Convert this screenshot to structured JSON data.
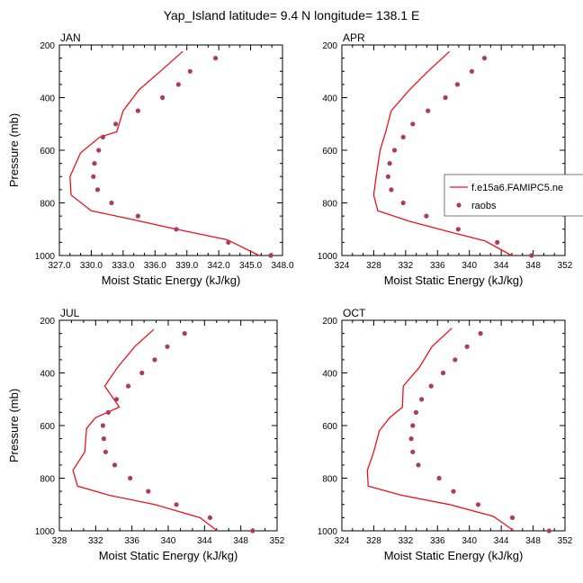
{
  "figure": {
    "title": "Yap_Island  latitude= 9.4 N longitude= 138.1 E"
  },
  "legend": {
    "model_label": "f.e15a6.FAMIPC5.ne",
    "obs_label": "raobs",
    "line_color": "#e8141a",
    "marker_color": "#b03a5e"
  },
  "chart_data": [
    {
      "type": "line",
      "panel": "JAN",
      "xlabel": "Moist Static Energy (kJ/kg)",
      "ylabel": "Pressure (mb)",
      "xlim": [
        327,
        348
      ],
      "xticks": [
        327,
        330,
        333,
        336,
        339,
        342,
        345,
        348
      ],
      "xtick_labels": [
        "327.0",
        "330.0",
        "333.0",
        "336.0",
        "339.0",
        "342.0",
        "345.0",
        "348.0"
      ],
      "ylim": [
        200,
        1000
      ],
      "yticks": [
        200,
        400,
        600,
        800,
        1000
      ],
      "y_inverted": true,
      "series": [
        {
          "name": "f.e15a6.FAMIPC5.ne",
          "style": "line",
          "points": [
            [
              338.6,
              225
            ],
            [
              336.5,
              300
            ],
            [
              334.5,
              370
            ],
            [
              333.0,
              450
            ],
            [
              332.4,
              530
            ],
            [
              330.8,
              550
            ],
            [
              329.0,
              610
            ],
            [
              328.0,
              700
            ],
            [
              328.1,
              770
            ],
            [
              330.0,
              830
            ],
            [
              333.5,
              860
            ],
            [
              338.0,
              900
            ],
            [
              342.8,
              940
            ],
            [
              345.8,
              1000
            ]
          ]
        },
        {
          "name": "raobs",
          "style": "scatter",
          "points": [
            [
              341.7,
              250
            ],
            [
              339.3,
              300
            ],
            [
              338.2,
              350
            ],
            [
              336.7,
              400
            ],
            [
              334.4,
              450
            ],
            [
              332.3,
              500
            ],
            [
              331.1,
              550
            ],
            [
              330.7,
              600
            ],
            [
              330.3,
              650
            ],
            [
              330.2,
              700
            ],
            [
              330.6,
              750
            ],
            [
              331.9,
              800
            ],
            [
              334.4,
              850
            ],
            [
              338.0,
              900
            ],
            [
              342.9,
              950
            ],
            [
              346.9,
              1000
            ]
          ]
        }
      ]
    },
    {
      "type": "line",
      "panel": "APR",
      "xlabel": "Moist Static Energy (kJ/kg)",
      "ylabel": "",
      "xlim": [
        324,
        352
      ],
      "xticks": [
        324,
        328,
        332,
        336,
        340,
        344,
        348,
        352
      ],
      "xtick_labels": [
        "324",
        "328",
        "332",
        "336",
        "340",
        "344",
        "348",
        "352"
      ],
      "ylim": [
        200,
        1000
      ],
      "yticks": [
        200,
        400,
        600,
        800,
        1000
      ],
      "y_inverted": true,
      "series": [
        {
          "name": "f.e15a6.FAMIPC5.ne",
          "style": "line",
          "points": [
            [
              337.5,
              225
            ],
            [
              334.8,
              300
            ],
            [
              332.5,
              370
            ],
            [
              330.2,
              450
            ],
            [
              329.5,
              530
            ],
            [
              328.8,
              600
            ],
            [
              328.3,
              700
            ],
            [
              328.0,
              770
            ],
            [
              328.5,
              830
            ],
            [
              332.5,
              870
            ],
            [
              337.5,
              910
            ],
            [
              342.0,
              945
            ],
            [
              345.3,
              1000
            ]
          ]
        },
        {
          "name": "raobs",
          "style": "scatter",
          "points": [
            [
              341.9,
              250
            ],
            [
              340.3,
              300
            ],
            [
              338.5,
              350
            ],
            [
              337.0,
              400
            ],
            [
              334.8,
              450
            ],
            [
              332.9,
              500
            ],
            [
              331.7,
              550
            ],
            [
              330.6,
              600
            ],
            [
              330.0,
              650
            ],
            [
              329.8,
              700
            ],
            [
              330.2,
              750
            ],
            [
              331.7,
              800
            ],
            [
              334.6,
              850
            ],
            [
              338.6,
              900
            ],
            [
              343.5,
              950
            ],
            [
              347.8,
              1000
            ]
          ]
        }
      ]
    },
    {
      "type": "line",
      "panel": "JUL",
      "xlabel": "Moist Static Energy (kJ/kg)",
      "ylabel": "Pressure (mb)",
      "xlim": [
        328,
        352
      ],
      "xticks": [
        328,
        332,
        336,
        340,
        344,
        348,
        352
      ],
      "xtick_labels": [
        "328",
        "332",
        "336",
        "340",
        "344",
        "348",
        "352"
      ],
      "ylim": [
        200,
        1000
      ],
      "yticks": [
        200,
        400,
        600,
        800,
        1000
      ],
      "y_inverted": true,
      "series": [
        {
          "name": "f.e15a6.FAMIPC5.ne",
          "style": "line",
          "points": [
            [
              338.4,
              235
            ],
            [
              336.3,
              300
            ],
            [
              334.4,
              380
            ],
            [
              333.0,
              450
            ],
            [
              334.6,
              530
            ],
            [
              332.0,
              570
            ],
            [
              331.0,
              610
            ],
            [
              330.8,
              700
            ],
            [
              329.5,
              770
            ],
            [
              330.0,
              830
            ],
            [
              333.5,
              865
            ],
            [
              338.5,
              900
            ],
            [
              343.5,
              950
            ],
            [
              345.4,
              1000
            ]
          ]
        },
        {
          "name": "raobs",
          "style": "scatter",
          "points": [
            [
              341.8,
              250
            ],
            [
              339.9,
              300
            ],
            [
              338.5,
              350
            ],
            [
              337.1,
              400
            ],
            [
              335.6,
              450
            ],
            [
              334.3,
              500
            ],
            [
              333.4,
              550
            ],
            [
              332.8,
              600
            ],
            [
              332.9,
              650
            ],
            [
              333.1,
              700
            ],
            [
              334.1,
              750
            ],
            [
              335.8,
              800
            ],
            [
              337.8,
              850
            ],
            [
              340.9,
              900
            ],
            [
              344.6,
              950
            ],
            [
              349.3,
              1000
            ]
          ]
        }
      ]
    },
    {
      "type": "line",
      "panel": "OCT",
      "xlabel": "Moist Static Energy (kJ/kg)",
      "ylabel": "",
      "xlim": [
        324,
        352
      ],
      "xticks": [
        324,
        328,
        332,
        336,
        340,
        344,
        348,
        352
      ],
      "xtick_labels": [
        "324",
        "328",
        "332",
        "336",
        "340",
        "344",
        "348",
        "352"
      ],
      "ylim": [
        200,
        1000
      ],
      "yticks": [
        200,
        400,
        600,
        800,
        1000
      ],
      "y_inverted": true,
      "series": [
        {
          "name": "f.e15a6.FAMIPC5.ne",
          "style": "line",
          "points": [
            [
              337.8,
              230
            ],
            [
              335.3,
              300
            ],
            [
              333.7,
              380
            ],
            [
              331.7,
              450
            ],
            [
              331.6,
              530
            ],
            [
              330.0,
              570
            ],
            [
              328.7,
              620
            ],
            [
              328.0,
              700
            ],
            [
              327.2,
              770
            ],
            [
              327.3,
              830
            ],
            [
              331.5,
              865
            ],
            [
              337.5,
              900
            ],
            [
              343.0,
              945
            ],
            [
              345.6,
              1000
            ]
          ]
        },
        {
          "name": "raobs",
          "style": "scatter",
          "points": [
            [
              341.4,
              250
            ],
            [
              339.7,
              300
            ],
            [
              338.2,
              350
            ],
            [
              336.7,
              400
            ],
            [
              335.2,
              450
            ],
            [
              334.0,
              500
            ],
            [
              333.3,
              550
            ],
            [
              332.9,
              600
            ],
            [
              332.7,
              650
            ],
            [
              332.9,
              700
            ],
            [
              333.6,
              750
            ],
            [
              336.2,
              800
            ],
            [
              338.0,
              850
            ],
            [
              341.1,
              900
            ],
            [
              345.4,
              950
            ],
            [
              350.0,
              1000
            ]
          ]
        }
      ]
    }
  ]
}
